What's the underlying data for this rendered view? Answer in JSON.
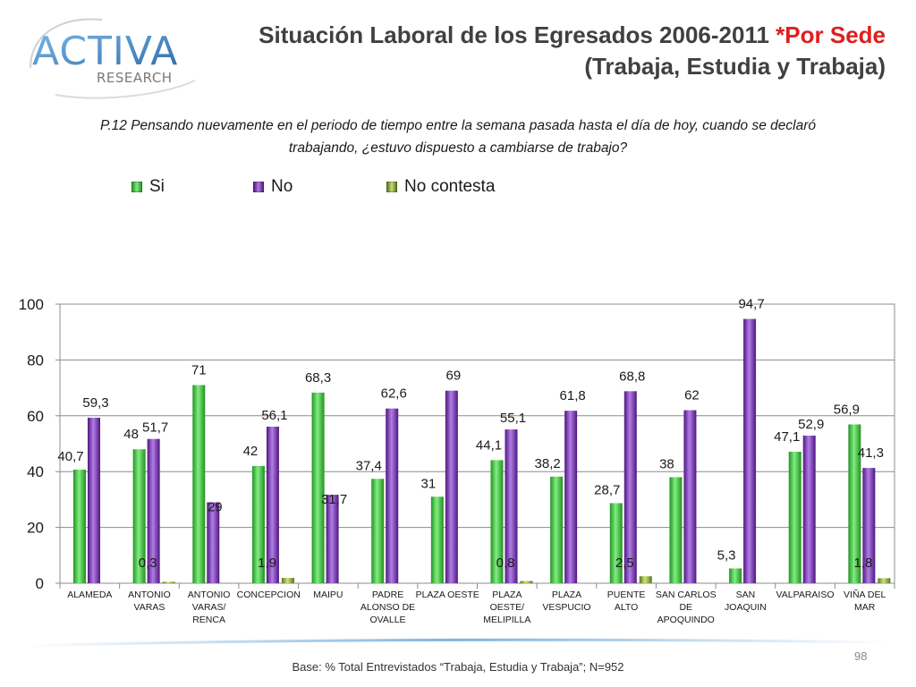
{
  "header": {
    "logo_main": "ACTIVA",
    "logo_sub": "RESEARCH",
    "title_line1": "Situación Laboral de los Egresados 2006-2011 ",
    "title_highlight": "*Por Sede",
    "title_line2": "(Trabaja, Estudia y Trabaja)"
  },
  "question": {
    "line1": "P.12 Pensando nuevamente en el periodo de tiempo entre la semana pasada hasta el día de hoy, cuando se declaró",
    "line2": "trabajando, ¿estuvo dispuesto a cambiarse de trabajo?"
  },
  "colors": {
    "si": "#3ec43e",
    "no": "#7b2fb5",
    "no_contesta": "#8aa63a",
    "title_red": "#e01e1e"
  },
  "chart_data": {
    "type": "bar",
    "title": "",
    "xlabel": "",
    "ylabel": "",
    "ylim": [
      0,
      100
    ],
    "yticks": [
      "0",
      "20",
      "40",
      "60",
      "80",
      "100"
    ],
    "grid": true,
    "legend_position": "top",
    "categories": [
      [
        "ALAMEDA"
      ],
      [
        "ANTONIO",
        "VARAS"
      ],
      [
        "ANTONIO",
        "VARAS/",
        "RENCA"
      ],
      [
        "CONCEPCION"
      ],
      [
        "MAIPU"
      ],
      [
        "PADRE",
        "ALONSO DE",
        "OVALLE"
      ],
      [
        "PLAZA OESTE"
      ],
      [
        "PLAZA",
        "OESTE/",
        "MELIPILLA"
      ],
      [
        "PLAZA",
        "VESPUCIO"
      ],
      [
        "PUENTE",
        "ALTO"
      ],
      [
        "SAN CARLOS",
        "DE",
        "APOQUINDO"
      ],
      [
        "SAN",
        "JOAQUIN"
      ],
      [
        "VALPARAISO"
      ],
      [
        "VIÑA DEL",
        "MAR"
      ]
    ],
    "series": [
      {
        "name": "Si",
        "values": [
          40.7,
          48,
          71,
          42,
          68.3,
          37.4,
          31,
          44.1,
          38.2,
          28.7,
          38,
          5.3,
          47.1,
          56.9
        ],
        "labels": [
          "40,7",
          "48",
          "71",
          "42",
          "68,3",
          "37,4",
          "31",
          "44,1",
          "38,2",
          "28,7",
          "38",
          "5,3",
          "47,1",
          "56,9"
        ]
      },
      {
        "name": "No",
        "values": [
          59.3,
          51.7,
          29,
          56.1,
          31.7,
          62.6,
          69,
          55.1,
          61.8,
          68.8,
          62,
          94.7,
          52.9,
          41.3
        ],
        "labels": [
          "59,3",
          "51,7",
          "29",
          "56,1",
          "31,7",
          "62,6",
          "69",
          "55,1",
          "61,8",
          "68,8",
          "62",
          "94,7",
          "52,9",
          "41,3"
        ]
      },
      {
        "name": "No contesta",
        "values": [
          null,
          0.3,
          null,
          1.9,
          null,
          null,
          null,
          0.8,
          null,
          2.5,
          null,
          null,
          null,
          1.8
        ],
        "labels": [
          null,
          "0,3",
          null,
          "1,9",
          null,
          null,
          null,
          "0,8",
          null,
          "2,5",
          null,
          null,
          null,
          "1,8"
        ]
      }
    ]
  },
  "footer": {
    "base_text": "Base: % Total Entrevistados “Trabaja, Estudia y Trabaja”; N=952",
    "page_number": "98"
  }
}
